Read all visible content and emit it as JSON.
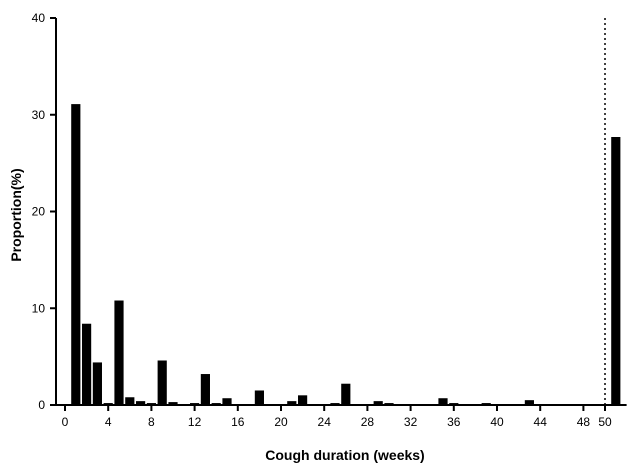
{
  "chart_data": {
    "type": "bar",
    "xlabel": "Cough duration (weeks)",
    "ylabel": "Proportion(%)",
    "ylim": [
      0,
      40
    ],
    "yticks": [
      0,
      10,
      20,
      30,
      40
    ],
    "xlim": [
      -1,
      52
    ],
    "xticks": [
      0,
      4,
      8,
      12,
      16,
      20,
      24,
      28,
      32,
      36,
      40,
      44,
      48
    ],
    "break_tick": 50,
    "break_line_x": 50,
    "bar_width_weeks": 0.85,
    "x": [
      1,
      2,
      3,
      4,
      5,
      6,
      7,
      8,
      9,
      10,
      11,
      12,
      13,
      14,
      15,
      16,
      17,
      18,
      19,
      20,
      21,
      22,
      23,
      24,
      25,
      26,
      27,
      28,
      29,
      30,
      31,
      32,
      33,
      34,
      35,
      36,
      37,
      38,
      39,
      40,
      41,
      42,
      43,
      44,
      45,
      46,
      47,
      48,
      49,
      51
    ],
    "values": [
      31.1,
      8.4,
      4.4,
      0.2,
      10.8,
      0.8,
      0.4,
      0.2,
      4.6,
      0.3,
      0.05,
      0.2,
      3.2,
      0.2,
      0.7,
      0.1,
      0.1,
      1.5,
      0.05,
      0.1,
      0.4,
      1.0,
      0.05,
      0.05,
      0.2,
      2.2,
      0.05,
      0.05,
      0.4,
      0.2,
      0.05,
      0.05,
      0.05,
      0.05,
      0.7,
      0.2,
      0.05,
      0.05,
      0.2,
      0.05,
      0.05,
      0.05,
      0.5,
      0.05,
      0.05,
      0.05,
      0.05,
      0.05,
      0.05,
      27.7
    ],
    "bar_color": "#000000",
    "grid": false
  }
}
